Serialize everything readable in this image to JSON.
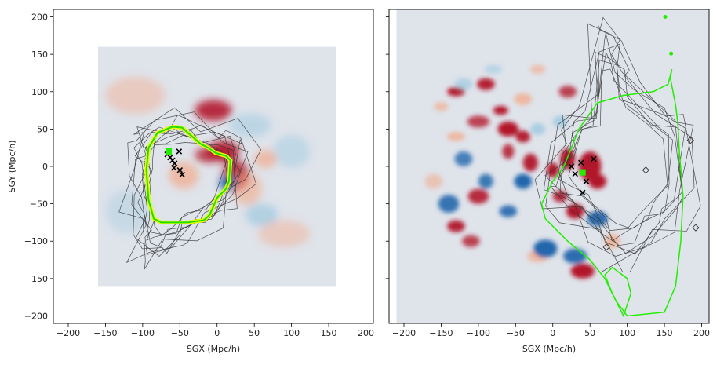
{
  "chart_data": [
    {
      "type": "heatmap",
      "panel": "left",
      "xlabel": "SGX (Mpc/h)",
      "ylabel": "SGY (Mpc/h)",
      "xlim": [
        -220,
        210
      ],
      "ylim": [
        -210,
        210
      ],
      "xticks": [
        -200,
        -150,
        -100,
        -50,
        0,
        50,
        100,
        150,
        200
      ],
      "yticks": [
        -200,
        -150,
        -100,
        -50,
        0,
        50,
        100,
        150,
        200
      ],
      "field_extent": [
        -160,
        160,
        -160,
        160
      ],
      "colormap": "coolwarm",
      "colors": {
        "background": "#dfe3ea",
        "hot": "#b2182b",
        "warm": "#f4a582",
        "cool": "#92c5de",
        "cold": "#2166ac"
      },
      "blobs": [
        {
          "x": 8,
          "y": 20,
          "w": 22,
          "h": 14,
          "value": 0.85
        },
        {
          "x": -12,
          "y": 15,
          "w": 18,
          "h": 10,
          "value": 0.7
        },
        {
          "x": 25,
          "y": -12,
          "w": 18,
          "h": 20,
          "value": 0.75
        },
        {
          "x": 15,
          "y": -22,
          "w": 12,
          "h": 10,
          "value": -0.9
        },
        {
          "x": -45,
          "y": -12,
          "w": 20,
          "h": 18,
          "value": 0.55
        },
        {
          "x": -5,
          "y": 75,
          "w": 25,
          "h": 14,
          "value": 0.8
        },
        {
          "x": 40,
          "y": -30,
          "w": 20,
          "h": 22,
          "value": 0.45
        },
        {
          "x": 60,
          "y": -65,
          "w": 22,
          "h": 15,
          "value": -0.5
        },
        {
          "x": 45,
          "y": 55,
          "w": 28,
          "h": 16,
          "value": -0.35
        },
        {
          "x": -110,
          "y": 95,
          "w": 40,
          "h": 25,
          "value": 0.3
        },
        {
          "x": 90,
          "y": -90,
          "w": 35,
          "h": 18,
          "value": 0.3
        },
        {
          "x": 100,
          "y": 20,
          "w": 25,
          "h": 22,
          "value": -0.3
        },
        {
          "x": -120,
          "y": -60,
          "w": 30,
          "h": 30,
          "value": -0.2
        },
        {
          "x": 65,
          "y": 10,
          "w": 15,
          "h": 12,
          "value": 0.55
        }
      ],
      "contour_outline": [
        [
          -100,
          45
        ],
        [
          -70,
          55
        ],
        [
          -40,
          58
        ],
        [
          -10,
          48
        ],
        [
          20,
          42
        ],
        [
          35,
          25
        ],
        [
          35,
          -10
        ],
        [
          20,
          -45
        ],
        [
          -5,
          -70
        ],
        [
          -40,
          -85
        ],
        [
          -60,
          -105
        ],
        [
          -85,
          -120
        ],
        [
          -105,
          -110
        ],
        [
          -100,
          -80
        ],
        [
          -110,
          -50
        ],
        [
          -105,
          0
        ],
        [
          -108,
          25
        ]
      ],
      "markers_x": [
        [
          -67,
          16
        ],
        [
          -63,
          12
        ],
        [
          -60,
          8
        ],
        [
          -57,
          4
        ],
        [
          -58,
          -2
        ],
        [
          -50,
          -5
        ],
        [
          -47,
          -11
        ],
        [
          -51,
          20
        ]
      ],
      "green_point": [
        -65,
        20
      ],
      "green_curve": [
        [
          -60,
          53
        ],
        [
          -47,
          52
        ],
        [
          -38,
          44
        ],
        [
          -22,
          30
        ],
        [
          -12,
          25
        ],
        [
          -2,
          18
        ],
        [
          12,
          14
        ],
        [
          18,
          8
        ],
        [
          16,
          -20
        ],
        [
          12,
          -30
        ],
        [
          0,
          -42
        ],
        [
          -10,
          -65
        ],
        [
          -18,
          -72
        ],
        [
          -40,
          -75
        ],
        [
          -75,
          -75
        ],
        [
          -85,
          -70
        ],
        [
          -92,
          -45
        ],
        [
          -95,
          -5
        ],
        [
          -92,
          25
        ],
        [
          -80,
          45
        ]
      ]
    },
    {
      "type": "heatmap",
      "panel": "right",
      "xlabel": "SGX (Mpc/h)",
      "ylabel": "",
      "xlim": [
        -220,
        210
      ],
      "ylim": [
        -210,
        210
      ],
      "xticks": [
        -200,
        -150,
        -100,
        -50,
        0,
        50,
        100,
        150,
        200
      ],
      "yticks": [
        -200,
        -150,
        -100,
        -50,
        0,
        50,
        100,
        150,
        200
      ],
      "field_extent": [
        -210,
        210,
        -210,
        210
      ],
      "colormap": "coolwarm",
      "colors": {
        "background": "#dfe3ea",
        "hot": "#b2182b",
        "warm": "#f4a582",
        "cool": "#92c5de",
        "cold": "#2166ac"
      },
      "blobs": [
        {
          "x": -130,
          "y": 100,
          "w": 12,
          "h": 6,
          "value": 0.9
        },
        {
          "x": -90,
          "y": 110,
          "w": 12,
          "h": 8,
          "value": 0.85
        },
        {
          "x": -70,
          "y": 75,
          "w": 10,
          "h": 6,
          "value": 0.9
        },
        {
          "x": -60,
          "y": 50,
          "w": 14,
          "h": 10,
          "value": 0.9
        },
        {
          "x": -40,
          "y": 40,
          "w": 10,
          "h": 8,
          "value": 0.85
        },
        {
          "x": -100,
          "y": 60,
          "w": 15,
          "h": 8,
          "value": 0.7
        },
        {
          "x": -130,
          "y": 40,
          "w": 12,
          "h": 6,
          "value": 0.6
        },
        {
          "x": -60,
          "y": 20,
          "w": 8,
          "h": 10,
          "value": 0.75
        },
        {
          "x": -30,
          "y": 5,
          "w": 10,
          "h": 12,
          "value": 0.85
        },
        {
          "x": 0,
          "y": -5,
          "w": 8,
          "h": 10,
          "value": 0.9
        },
        {
          "x": 20,
          "y": 10,
          "w": 10,
          "h": 14,
          "value": 0.9
        },
        {
          "x": 50,
          "y": 0,
          "w": 15,
          "h": 20,
          "value": 0.95
        },
        {
          "x": 60,
          "y": -20,
          "w": 12,
          "h": 10,
          "value": 0.9
        },
        {
          "x": 30,
          "y": -60,
          "w": 12,
          "h": 10,
          "value": 0.9
        },
        {
          "x": 10,
          "y": -40,
          "w": 10,
          "h": 8,
          "value": 0.8
        },
        {
          "x": -100,
          "y": -40,
          "w": 14,
          "h": 10,
          "value": 0.8
        },
        {
          "x": -130,
          "y": -80,
          "w": 12,
          "h": 8,
          "value": 0.85
        },
        {
          "x": 40,
          "y": -140,
          "w": 16,
          "h": 10,
          "value": 0.9
        },
        {
          "x": -20,
          "y": -120,
          "w": 14,
          "h": 8,
          "value": 0.6
        },
        {
          "x": 20,
          "y": 100,
          "w": 12,
          "h": 8,
          "value": 0.7
        },
        {
          "x": -20,
          "y": 130,
          "w": 10,
          "h": 6,
          "value": 0.5
        },
        {
          "x": 80,
          "y": -100,
          "w": 10,
          "h": 10,
          "value": 0.6
        },
        {
          "x": -160,
          "y": -20,
          "w": 12,
          "h": 10,
          "value": 0.4
        },
        {
          "x": -150,
          "y": 80,
          "w": 10,
          "h": 6,
          "value": 0.5
        },
        {
          "x": -120,
          "y": 10,
          "w": 12,
          "h": 10,
          "value": -0.7
        },
        {
          "x": -140,
          "y": -50,
          "w": 14,
          "h": 12,
          "value": -0.8
        },
        {
          "x": -90,
          "y": -20,
          "w": 10,
          "h": 10,
          "value": -0.75
        },
        {
          "x": -40,
          "y": -20,
          "w": 12,
          "h": 10,
          "value": -0.9
        },
        {
          "x": -10,
          "y": -110,
          "w": 16,
          "h": 12,
          "value": -0.95
        },
        {
          "x": 30,
          "y": -120,
          "w": 16,
          "h": 10,
          "value": -0.85
        },
        {
          "x": 60,
          "y": -70,
          "w": 14,
          "h": 10,
          "value": -0.85
        },
        {
          "x": -20,
          "y": 50,
          "w": 10,
          "h": 8,
          "value": -0.6
        },
        {
          "x": -120,
          "y": 110,
          "w": 12,
          "h": 8,
          "value": -0.5
        },
        {
          "x": -60,
          "y": -60,
          "w": 12,
          "h": 8,
          "value": -0.8
        },
        {
          "x": 10,
          "y": 60,
          "w": 10,
          "h": 8,
          "value": -0.6
        },
        {
          "x": -80,
          "y": 130,
          "w": 12,
          "h": 6,
          "value": -0.4
        },
        {
          "x": -40,
          "y": 90,
          "w": 12,
          "h": 8,
          "value": 0.6
        },
        {
          "x": -110,
          "y": -100,
          "w": 12,
          "h": 8,
          "value": 0.7
        }
      ],
      "contour_outline": [
        [
          20,
          60
        ],
        [
          50,
          75
        ],
        [
          60,
          180
        ],
        [
          80,
          175
        ],
        [
          90,
          140
        ],
        [
          100,
          110
        ],
        [
          150,
          70
        ],
        [
          180,
          50
        ],
        [
          180,
          -40
        ],
        [
          160,
          -70
        ],
        [
          140,
          -90
        ],
        [
          110,
          -120
        ],
        [
          80,
          -120
        ],
        [
          60,
          -90
        ],
        [
          30,
          -60
        ],
        [
          0,
          -40
        ],
        [
          -10,
          -20
        ],
        [
          10,
          20
        ]
      ],
      "markers_x": [
        [
          38,
          5
        ],
        [
          55,
          10
        ],
        [
          30,
          -10
        ],
        [
          45,
          -20
        ],
        [
          40,
          -35
        ],
        [
          25,
          0
        ]
      ],
      "markers_diamond": [
        [
          185,
          35
        ],
        [
          192,
          -82
        ],
        [
          72,
          -108
        ],
        [
          125,
          -5
        ]
      ],
      "green_point": [
        40,
        -8
      ],
      "green_dots": [
        [
          151,
          200
        ],
        [
          159,
          151
        ]
      ],
      "green_curve": [
        [
          160,
          130
        ],
        [
          158,
          118
        ],
        [
          165,
          82
        ],
        [
          168,
          58
        ],
        [
          170,
          20
        ],
        [
          175,
          -40
        ],
        [
          172,
          -100
        ],
        [
          165,
          -160
        ],
        [
          150,
          -195
        ],
        [
          100,
          -200
        ],
        [
          85,
          -180
        ],
        [
          70,
          -150
        ],
        [
          50,
          -125
        ],
        [
          20,
          -100
        ],
        [
          -10,
          -70
        ],
        [
          -15,
          -50
        ],
        [
          0,
          -20
        ],
        [
          15,
          0
        ],
        [
          35,
          50
        ],
        [
          60,
          85
        ],
        [
          95,
          95
        ],
        [
          135,
          100
        ],
        [
          155,
          110
        ]
      ],
      "green_loop": [
        [
          95,
          -200
        ],
        [
          105,
          -170
        ],
        [
          100,
          -150
        ],
        [
          80,
          -135
        ],
        [
          70,
          -145
        ],
        [
          80,
          -170
        ]
      ]
    }
  ]
}
